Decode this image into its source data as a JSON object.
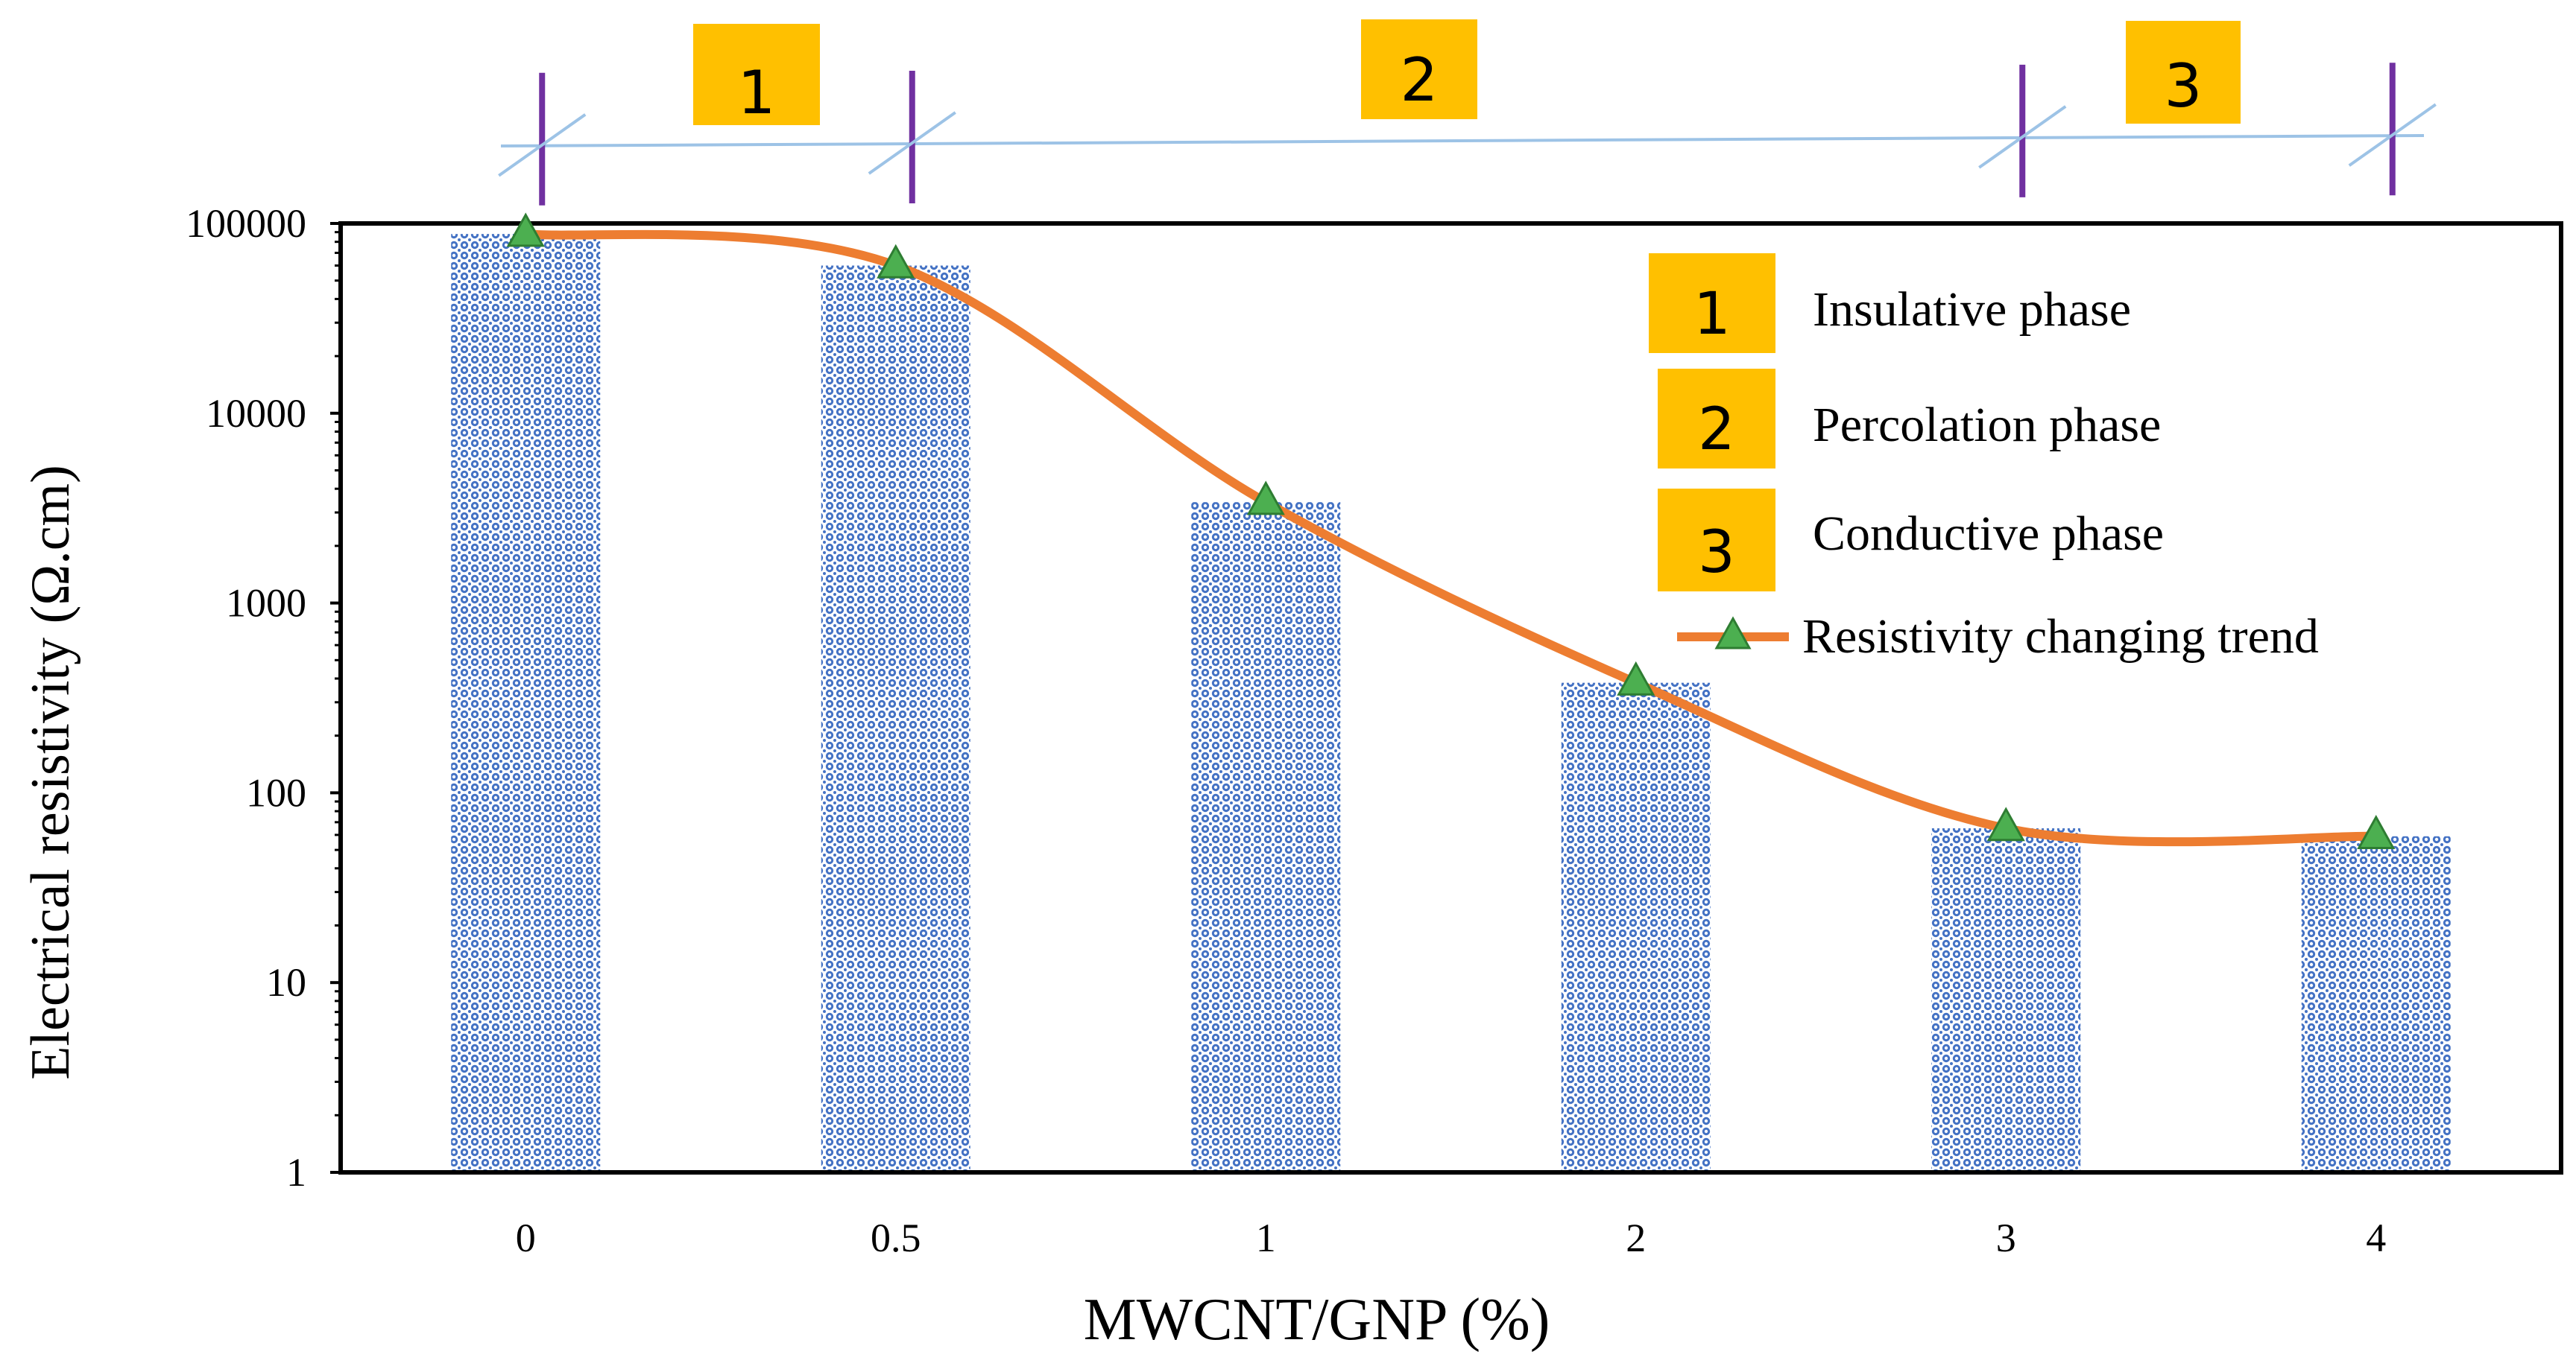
{
  "chart_data": {
    "type": "bar",
    "title": "",
    "xlabel": "MWCNT/GNP (%)",
    "ylabel": "Electrical resistivity (Ω.cm)",
    "yscale": "log",
    "ylim": [
      1,
      100000
    ],
    "yticks": [
      "1",
      "10",
      "100",
      "1000",
      "10000",
      "100000"
    ],
    "categories": [
      "0",
      "0.5",
      "1",
      "2",
      "3",
      "4"
    ],
    "values": [
      88000,
      60000,
      3400,
      380,
      65,
      59
    ],
    "trend": {
      "name": "Resistivity changing trend",
      "values": [
        88000,
        60000,
        3400,
        380,
        65,
        59
      ]
    },
    "phases": [
      {
        "number": "1",
        "label": "Insulative phase",
        "from": "0",
        "to": "0.5"
      },
      {
        "number": "2",
        "label": "Percolation phase",
        "from": "0.5",
        "to": "3"
      },
      {
        "number": "3",
        "label": "Conductive phase",
        "from": "3",
        "to": "4"
      }
    ],
    "legend_position": "top-right",
    "colors": {
      "bar": "#4472C4",
      "trend_line": "#ED7D31",
      "marker": "#4CAF50",
      "phase_box": "#FFC000",
      "phase_line": "#9DC3E6",
      "phase_tick": "#7030A0",
      "axis": "#000000"
    }
  }
}
